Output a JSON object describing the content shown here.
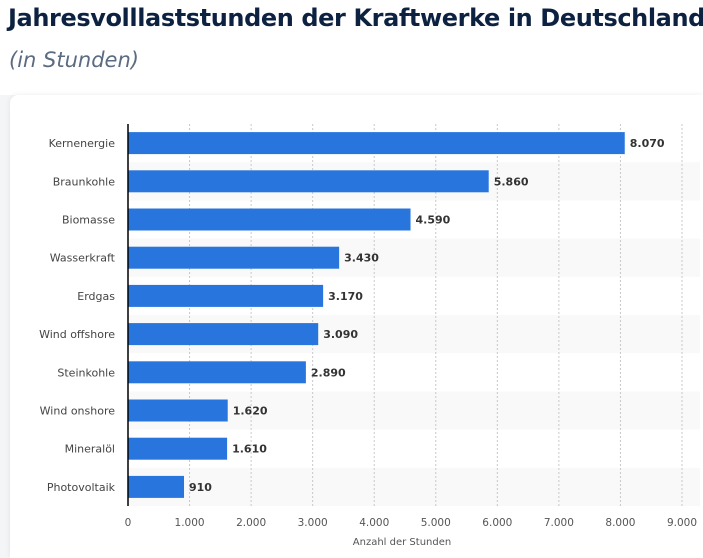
{
  "title": "Jahresvolllaststunden der Kraftwerke in Deutschland",
  "subtitle": "(in Stunden)",
  "chart_data": {
    "type": "bar",
    "orientation": "horizontal",
    "categories": [
      "Kernenergie",
      "Braunkohle",
      "Biomasse",
      "Wasserkraft",
      "Erdgas",
      "Wind offshore",
      "Steinkohle",
      "Wind onshore",
      "Mineralöl",
      "Photovoltaik"
    ],
    "values": [
      8070,
      5860,
      4590,
      3430,
      3170,
      3090,
      2890,
      1620,
      1610,
      910
    ],
    "value_labels": [
      "8.070",
      "5.860",
      "4.590",
      "3.430",
      "3.170",
      "3.090",
      "2.890",
      "1.620",
      "1.610",
      "910"
    ],
    "xlabel": "Anzahl der Stunden",
    "ylabel": "",
    "xlim": [
      0,
      9000
    ],
    "xticks": [
      0,
      1000,
      2000,
      3000,
      4000,
      5000,
      6000,
      7000,
      8000,
      9000
    ],
    "xtick_labels": [
      "0",
      "1.000",
      "2.000",
      "3.000",
      "4.000",
      "5.000",
      "6.000",
      "7.000",
      "8.000",
      "9.000"
    ],
    "grid": "vertical dotted",
    "bar_color": "#2876dd"
  }
}
